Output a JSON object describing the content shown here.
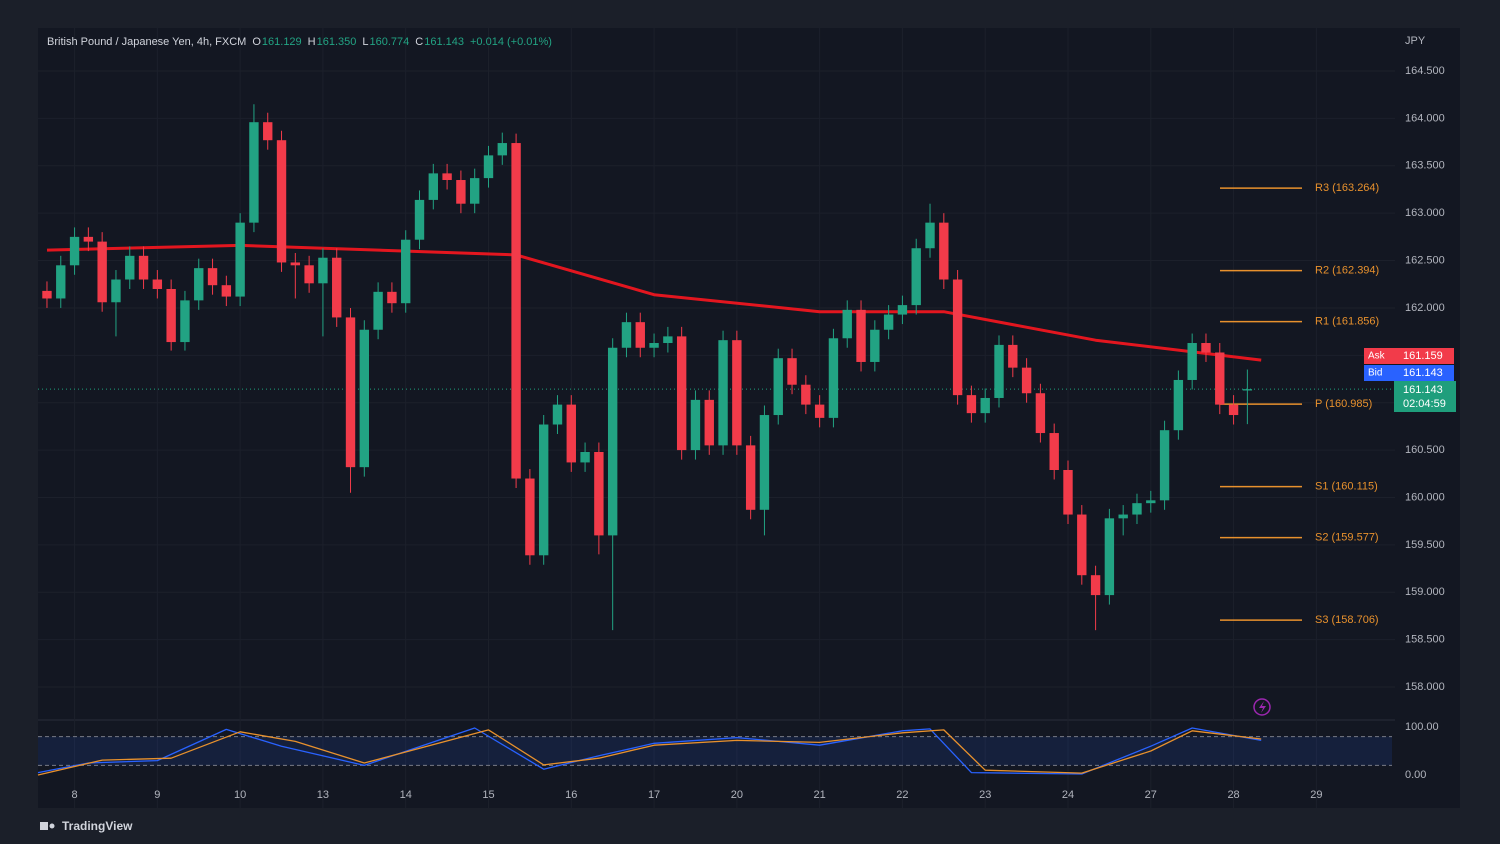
{
  "chart_data": {
    "type": "candlestick",
    "symbol": "British Pound / Japanese Yen, 4h, FXCM",
    "ohlc_header": [
      {
        "label": "O",
        "value": "161.129"
      },
      {
        "label": "H",
        "value": "161.350"
      },
      {
        "label": "L",
        "value": "160.774"
      },
      {
        "label": "C",
        "value": "161.143"
      }
    ],
    "change": "+0.014 (+0.01%)",
    "currency": "JPY",
    "up_color": "#22a383",
    "down_color": "#f23b4a",
    "open": [
      162.18,
      162.1,
      162.45,
      162.75,
      162.7,
      162.06,
      162.3,
      162.55,
      162.3,
      162.2,
      161.64,
      162.08,
      162.42,
      162.24,
      162.12,
      162.9,
      163.96,
      163.77,
      162.48,
      162.45,
      162.26,
      162.53,
      161.9,
      160.32,
      161.77,
      162.17,
      162.05,
      162.72,
      163.14,
      163.42,
      163.35,
      163.1,
      163.37,
      163.61,
      163.74,
      160.2,
      159.39,
      160.77,
      160.98,
      160.37,
      160.48,
      159.6,
      161.58,
      161.85,
      161.58,
      161.63,
      161.7,
      160.5,
      161.03,
      160.55,
      161.66,
      160.55,
      159.87,
      160.87,
      161.47,
      161.19,
      160.98,
      160.84,
      161.68,
      161.98,
      161.43,
      161.77,
      161.93,
      162.03,
      162.63,
      162.9,
      162.3,
      161.08,
      160.89,
      161.05,
      161.61,
      161.37,
      161.1,
      160.68,
      160.29,
      159.82,
      159.18,
      158.97,
      159.78,
      159.82,
      159.94,
      159.97,
      160.71,
      161.24,
      161.63,
      161.53,
      160.98,
      161.129
    ],
    "high": [
      162.28,
      162.55,
      162.85,
      162.85,
      162.8,
      162.4,
      162.65,
      162.65,
      162.4,
      162.3,
      162.18,
      162.52,
      162.52,
      162.34,
      163.0,
      164.15,
      164.06,
      163.87,
      162.58,
      162.55,
      162.63,
      162.63,
      162.0,
      161.87,
      162.27,
      162.27,
      162.82,
      163.24,
      163.52,
      163.52,
      163.45,
      163.47,
      163.71,
      163.85,
      163.84,
      160.3,
      160.87,
      161.08,
      161.08,
      160.58,
      160.58,
      161.68,
      161.95,
      161.95,
      161.73,
      161.8,
      161.8,
      161.13,
      161.13,
      161.76,
      161.76,
      160.65,
      160.97,
      161.57,
      161.57,
      161.29,
      161.08,
      161.78,
      162.08,
      162.08,
      161.87,
      162.03,
      162.13,
      162.73,
      163.1,
      163.0,
      162.4,
      161.18,
      161.15,
      161.71,
      161.71,
      161.47,
      161.2,
      160.78,
      160.39,
      159.92,
      159.28,
      159.88,
      159.92,
      160.04,
      160.07,
      160.81,
      161.34,
      161.73,
      161.73,
      161.63,
      161.08,
      161.35
    ],
    "low": [
      162.0,
      162.0,
      162.35,
      162.6,
      161.96,
      161.7,
      162.2,
      162.2,
      162.1,
      161.55,
      161.55,
      161.98,
      162.14,
      162.02,
      162.02,
      162.8,
      163.67,
      162.38,
      162.1,
      162.16,
      161.7,
      161.8,
      160.05,
      160.22,
      161.67,
      161.95,
      161.95,
      162.62,
      163.04,
      163.25,
      163.0,
      163.0,
      163.27,
      163.51,
      160.1,
      159.29,
      159.29,
      160.67,
      160.27,
      160.27,
      159.4,
      158.6,
      161.48,
      161.48,
      161.48,
      161.53,
      160.4,
      160.4,
      160.45,
      160.45,
      160.45,
      159.77,
      159.6,
      160.77,
      161.09,
      160.88,
      160.74,
      160.74,
      161.58,
      161.33,
      161.33,
      161.67,
      161.83,
      161.93,
      162.53,
      162.2,
      160.98,
      160.79,
      160.79,
      160.95,
      161.27,
      161.0,
      160.58,
      160.19,
      159.72,
      159.08,
      158.6,
      158.87,
      159.6,
      159.72,
      159.84,
      159.87,
      160.61,
      161.14,
      161.43,
      160.88,
      160.77,
      160.774
    ],
    "close": [
      162.1,
      162.45,
      162.75,
      162.7,
      162.06,
      162.3,
      162.55,
      162.3,
      162.2,
      161.64,
      162.08,
      162.42,
      162.24,
      162.12,
      162.9,
      163.96,
      163.77,
      162.48,
      162.45,
      162.26,
      162.53,
      161.9,
      160.32,
      161.77,
      162.17,
      162.05,
      162.72,
      163.14,
      163.42,
      163.35,
      163.1,
      163.37,
      163.61,
      163.74,
      160.2,
      159.39,
      160.77,
      160.98,
      160.37,
      160.48,
      159.6,
      161.58,
      161.85,
      161.58,
      161.63,
      161.7,
      160.5,
      161.03,
      160.55,
      161.66,
      160.55,
      159.87,
      160.87,
      161.47,
      161.19,
      160.98,
      160.84,
      161.68,
      161.98,
      161.43,
      161.77,
      161.93,
      162.03,
      162.63,
      162.9,
      162.3,
      161.08,
      160.89,
      161.05,
      161.61,
      161.37,
      161.1,
      160.68,
      160.29,
      159.82,
      159.18,
      158.97,
      159.78,
      159.82,
      159.94,
      159.97,
      160.71,
      161.24,
      161.63,
      161.53,
      160.98,
      160.87,
      161.143
    ],
    "xlim": [
      -0.65,
      97.7
    ],
    "xticks": [
      {
        "value": 2,
        "label": "8"
      },
      {
        "value": 8,
        "label": "9"
      },
      {
        "value": 14,
        "label": "10"
      },
      {
        "value": 20,
        "label": "13"
      },
      {
        "value": 26,
        "label": "14"
      },
      {
        "value": 32,
        "label": "15"
      },
      {
        "value": 38,
        "label": "16"
      },
      {
        "value": 44,
        "label": "17"
      },
      {
        "value": 50,
        "label": "20"
      },
      {
        "value": 56,
        "label": "21"
      },
      {
        "value": 62,
        "label": "22"
      },
      {
        "value": 68,
        "label": "23"
      },
      {
        "value": 74,
        "label": "24"
      },
      {
        "value": 80,
        "label": "27"
      },
      {
        "value": 86,
        "label": "28"
      },
      {
        "value": 92,
        "label": "29"
      }
    ],
    "ylim": [
      157.652,
      164.954
    ],
    "yticks": [
      {
        "value": 158.0,
        "label": "158.000"
      },
      {
        "value": 158.5,
        "label": "158.500"
      },
      {
        "value": 159.0,
        "label": "159.000"
      },
      {
        "value": 159.5,
        "label": "159.500"
      },
      {
        "value": 160.0,
        "label": "160.000"
      },
      {
        "value": 160.5,
        "label": "160.500"
      },
      {
        "value": 161.0,
        "label": "161.000"
      },
      {
        "value": 161.5,
        "label": "161.500"
      },
      {
        "value": 162.0,
        "label": "162.000"
      },
      {
        "value": 162.5,
        "label": "162.500"
      },
      {
        "value": 163.0,
        "label": "163.000"
      },
      {
        "value": 163.5,
        "label": "163.500"
      },
      {
        "value": 164.0,
        "label": "164.000"
      },
      {
        "value": 164.5,
        "label": "164.500"
      }
    ],
    "pivot_color": "#e8912d",
    "pivots": [
      {
        "label": "R3 (163.264)",
        "value": 163.264
      },
      {
        "label": "R2 (162.394)",
        "value": 162.394
      },
      {
        "label": "R1 (161.856)",
        "value": 161.856
      },
      {
        "label": "P (160.985)",
        "value": 160.985
      },
      {
        "label": "S1 (160.115)",
        "value": 160.115
      },
      {
        "label": "S2 (159.577)",
        "value": 159.577
      },
      {
        "label": "S3 (158.706)",
        "value": 158.706
      }
    ],
    "moving_average": {
      "color": "#e3161f",
      "x": [
        0,
        14,
        34,
        44,
        56,
        65,
        76,
        88
      ],
      "values": [
        162.61,
        162.66,
        162.56,
        162.14,
        161.96,
        161.96,
        161.66,
        161.45
      ]
    },
    "price_tags": {
      "ask": {
        "label": "Ask",
        "value": "161.159",
        "color": "#f23b4a"
      },
      "bid": {
        "label": "Bid",
        "value": "161.143",
        "color": "#2962ff"
      },
      "last": {
        "value": "161.143",
        "countdown": "02:04:59",
        "color": "#1f9e7c"
      }
    },
    "last_price": 161.143,
    "oscillator": {
      "ylim": [
        -68.75,
        114.6
      ],
      "yticks": [
        {
          "value": 100,
          "label": "100.00"
        },
        {
          "value": 0,
          "label": "0.00"
        }
      ],
      "bands": [
        20,
        80
      ],
      "series": [
        {
          "color": "#2962ff",
          "x": [
            -0.65,
            3,
            8,
            13,
            17,
            23,
            31,
            36,
            40,
            44,
            50,
            56,
            62,
            64,
            67,
            75,
            80,
            83,
            88
          ],
          "values": [
            5,
            25,
            30,
            95,
            60,
            20,
            98,
            12,
            40,
            66,
            78,
            62,
            92,
            96,
            5,
            2,
            60,
            98,
            72
          ]
        },
        {
          "color": "#e8912d",
          "x": [
            -0.65,
            4,
            9,
            14,
            18,
            23,
            32,
            36,
            40,
            44,
            50,
            56,
            62,
            65,
            68,
            75,
            80,
            83,
            88
          ],
          "values": [
            0,
            31,
            35,
            90,
            70,
            25,
            94,
            21,
            35,
            62,
            72,
            68,
            88,
            94,
            10,
            4,
            50,
            92,
            75
          ]
        }
      ]
    },
    "brand": "TradingView"
  }
}
